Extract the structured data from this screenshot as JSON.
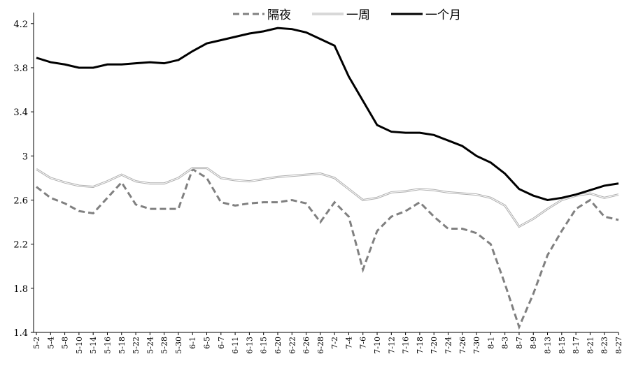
{
  "chart_data": {
    "type": "line",
    "categories": [
      "5-2",
      "5-4",
      "5-8",
      "5-10",
      "5-14",
      "5-16",
      "5-18",
      "5-22",
      "5-24",
      "5-28",
      "5-30",
      "6-1",
      "6-5",
      "6-7",
      "6-11",
      "6-13",
      "6-15",
      "6-20",
      "6-22",
      "6-26",
      "6-28",
      "7-2",
      "7-4",
      "7-6",
      "7-10",
      "7-12",
      "7-16",
      "7-18",
      "7-20",
      "7-24",
      "7-26",
      "7-30",
      "8-1",
      "8-3",
      "8-7",
      "8-9",
      "8-13",
      "8-15",
      "8-17",
      "8-21",
      "8-23",
      "8-27"
    ],
    "series": [
      {
        "name": "隔夜",
        "color": "#808080",
        "style": "dashed",
        "values": [
          2.72,
          2.62,
          2.57,
          2.5,
          2.48,
          2.62,
          2.76,
          2.56,
          2.52,
          2.52,
          2.52,
          2.88,
          2.8,
          2.58,
          2.55,
          2.57,
          2.58,
          2.58,
          2.6,
          2.57,
          2.4,
          2.58,
          2.45,
          1.97,
          2.32,
          2.45,
          2.5,
          2.58,
          2.45,
          2.34,
          2.34,
          2.3,
          2.2,
          1.84,
          1.45,
          1.75,
          2.1,
          2.32,
          2.52,
          2.6,
          2.45,
          2.42
        ]
      },
      {
        "name": "一周",
        "color": "#b0b0b0",
        "style": "double",
        "values": [
          2.88,
          2.8,
          2.76,
          2.73,
          2.72,
          2.77,
          2.83,
          2.77,
          2.75,
          2.75,
          2.8,
          2.89,
          2.89,
          2.8,
          2.78,
          2.77,
          2.79,
          2.81,
          2.82,
          2.83,
          2.84,
          2.8,
          2.7,
          2.6,
          2.62,
          2.67,
          2.68,
          2.7,
          2.69,
          2.67,
          2.66,
          2.65,
          2.62,
          2.55,
          2.36,
          2.43,
          2.52,
          2.6,
          2.64,
          2.66,
          2.62,
          2.65
        ]
      },
      {
        "name": "一个月",
        "color": "#000000",
        "style": "solid",
        "values": [
          3.89,
          3.85,
          3.83,
          3.8,
          3.8,
          3.83,
          3.83,
          3.84,
          3.85,
          3.84,
          3.87,
          3.95,
          4.02,
          4.05,
          4.08,
          4.11,
          4.13,
          4.16,
          4.15,
          4.12,
          4.06,
          4.0,
          3.72,
          3.5,
          3.28,
          3.22,
          3.21,
          3.21,
          3.19,
          3.14,
          3.09,
          3.0,
          2.94,
          2.84,
          2.7,
          2.64,
          2.6,
          2.62,
          2.65,
          2.69,
          2.73,
          2.75
        ]
      }
    ],
    "ylim": [
      1.4,
      4.3
    ],
    "yticks": [
      1.4,
      1.8,
      2.2,
      2.6,
      3,
      3.4,
      3.8,
      4.2
    ],
    "grid": false,
    "legend": "top"
  }
}
